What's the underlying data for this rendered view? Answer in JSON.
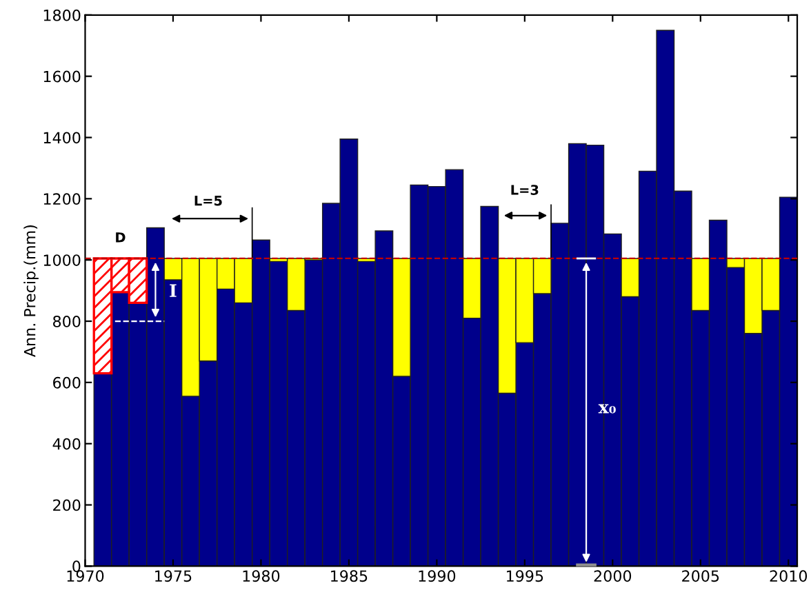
{
  "chart_data": {
    "type": "bar",
    "stacked": true,
    "ylabel": "Ann. Precip.(mm)",
    "x": [
      1971,
      1972,
      1973,
      1974,
      1975,
      1976,
      1977,
      1978,
      1979,
      1980,
      1981,
      1982,
      1983,
      1984,
      1985,
      1986,
      1987,
      1988,
      1989,
      1990,
      1991,
      1992,
      1993,
      1994,
      1995,
      1996,
      1997,
      1998,
      1999,
      2000,
      2001,
      2002,
      2003,
      2004,
      2005,
      2006,
      2007,
      2008,
      2009,
      2010
    ],
    "series": [
      {
        "color": "#00008b",
        "values": [
          630,
          895,
          860,
          1105,
          935,
          555,
          670,
          905,
          860,
          1065,
          995,
          835,
          1000,
          1185,
          1395,
          995,
          1095,
          620,
          1245,
          1240,
          1295,
          810,
          1175,
          565,
          730,
          890,
          1120,
          1380,
          1375,
          1085,
          880,
          1290,
          1750,
          1225,
          835,
          1130,
          975,
          760,
          835,
          1205
        ]
      },
      {
        "color": "#ffff00",
        "values": [
          null,
          null,
          null,
          null,
          70,
          450,
          335,
          100,
          145,
          null,
          10,
          170,
          5,
          null,
          null,
          10,
          null,
          385,
          null,
          null,
          null,
          195,
          null,
          440,
          275,
          115,
          null,
          null,
          null,
          null,
          125,
          null,
          null,
          null,
          170,
          null,
          30,
          245,
          170,
          null
        ]
      },
      {
        "color": "#ff0000",
        "values": [
          375,
          110,
          145,
          null,
          null,
          null,
          null,
          null,
          null,
          null,
          null,
          null,
          null,
          null,
          null,
          null,
          null,
          null,
          null,
          null,
          null,
          null,
          null,
          null,
          null,
          null,
          null,
          null,
          null,
          null,
          null,
          null,
          null,
          null,
          null,
          null,
          null,
          null,
          null,
          null
        ]
      }
    ],
    "xlim": [
      1970,
      2010.5
    ],
    "xticks": [
      1970,
      1975,
      1980,
      1985,
      1990,
      1995,
      2000,
      2005,
      2010
    ],
    "ylim": [
      0,
      1800
    ],
    "yticks": [
      0,
      200,
      400,
      600,
      800,
      1000,
      1200,
      1400,
      1600,
      1800
    ],
    "ref_lines": [
      {
        "axis": "y",
        "value": 1005,
        "color": "#c00000",
        "line_style": "dashed"
      }
    ],
    "annotations": [
      "D",
      "L=5",
      "L=3",
      "I",
      "x₀"
    ],
    "grid": false,
    "legend": false
  }
}
